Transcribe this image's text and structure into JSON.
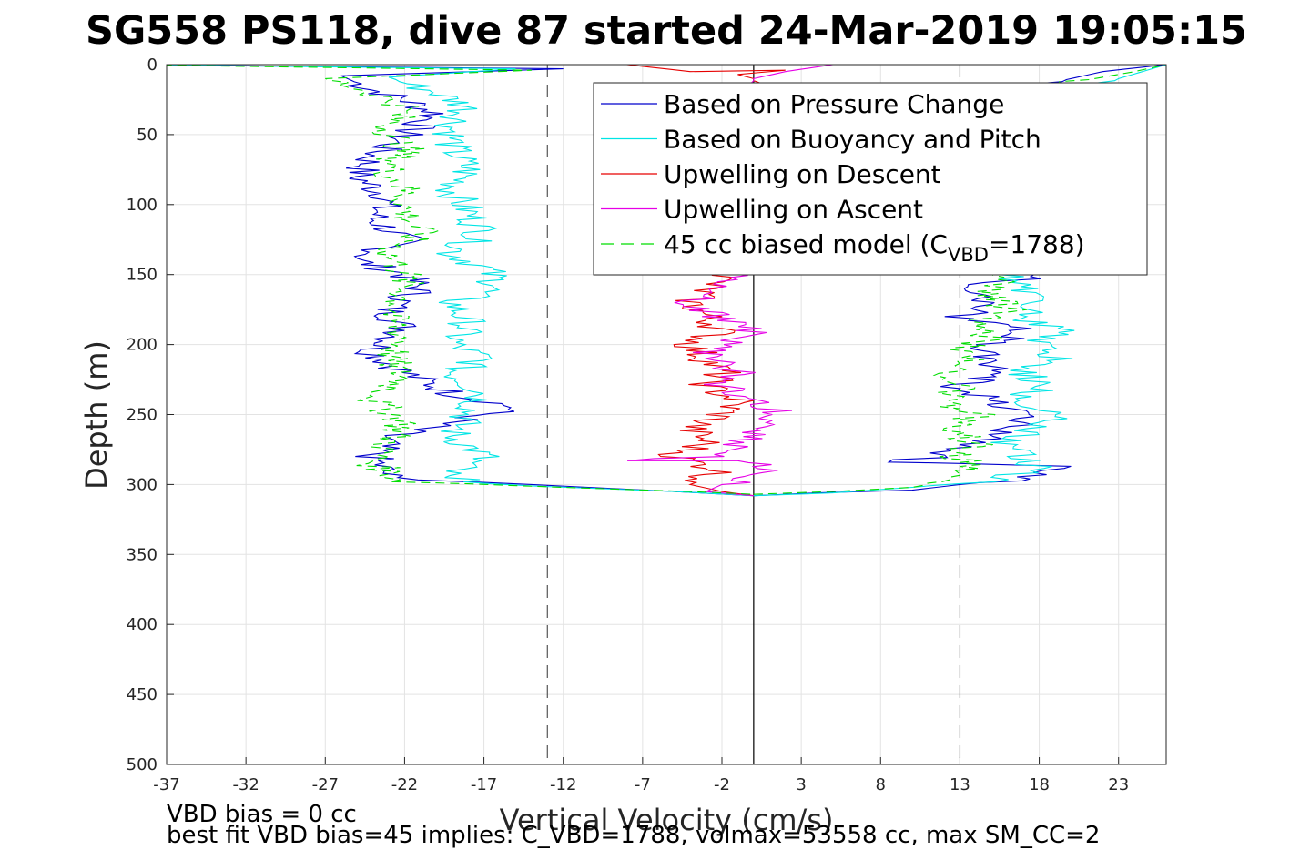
{
  "chart_data": {
    "type": "line",
    "title": "SG558 PS118, dive 87 started 24-Mar-2019 19:05:15",
    "xlabel": "Vertical Velocity (cm/s)",
    "ylabel": "Depth (m)",
    "xlim": [
      -37,
      26
    ],
    "ylim": [
      0,
      500
    ],
    "y_reversed": true,
    "grid": true,
    "xticks": [
      -37,
      -32,
      -27,
      -22,
      -17,
      -12,
      -7,
      -2,
      3,
      8,
      13,
      18,
      23
    ],
    "yticks": [
      0,
      50,
      100,
      150,
      200,
      250,
      300,
      350,
      400,
      450,
      500
    ],
    "reference_lines": [
      {
        "x": 0,
        "style": "solid",
        "color": "#000000"
      },
      {
        "x": -13,
        "style": "dashed",
        "color": "#555555"
      },
      {
        "x": 13,
        "style": "dashed",
        "color": "#555555"
      }
    ],
    "legend_position": "top-right",
    "series": [
      {
        "name": "Based on Pressure Change",
        "color": "#0000cc",
        "style": "solid",
        "descent": [
          [
            -40,
            0
          ],
          [
            -12,
            3
          ],
          [
            -26,
            8
          ],
          [
            -24,
            18
          ],
          [
            -22,
            25
          ],
          [
            -20,
            35
          ],
          [
            -22,
            50
          ],
          [
            -24,
            65
          ],
          [
            -25,
            80
          ],
          [
            -23,
            95
          ],
          [
            -24,
            110
          ],
          [
            -22,
            125
          ],
          [
            -25,
            140
          ],
          [
            -22,
            150
          ],
          [
            -21,
            160
          ],
          [
            -23,
            175
          ],
          [
            -22,
            190
          ],
          [
            -24,
            205
          ],
          [
            -22,
            220
          ],
          [
            -19,
            235
          ],
          [
            -15,
            245
          ],
          [
            -19,
            255
          ],
          [
            -23,
            265
          ],
          [
            -24,
            280
          ],
          [
            -23,
            295
          ],
          [
            -14,
            300
          ],
          [
            -5,
            305
          ],
          [
            0,
            308
          ]
        ],
        "ascent": [
          [
            0,
            308
          ],
          [
            4,
            306
          ],
          [
            10,
            304
          ],
          [
            13,
            300
          ],
          [
            17,
            296
          ],
          [
            20,
            287
          ],
          [
            13,
            285
          ],
          [
            9,
            284
          ],
          [
            12,
            279
          ],
          [
            14,
            270
          ],
          [
            16,
            260
          ],
          [
            18,
            250
          ],
          [
            15,
            240
          ],
          [
            13,
            230
          ],
          [
            16,
            220
          ],
          [
            14,
            210
          ],
          [
            15,
            200
          ],
          [
            17,
            190
          ],
          [
            13,
            180
          ],
          [
            15,
            170
          ],
          [
            13,
            160
          ],
          [
            17,
            153
          ],
          [
            16,
            145
          ],
          [
            15,
            120
          ],
          [
            14,
            80
          ],
          [
            15,
            40
          ],
          [
            18,
            15
          ],
          [
            22,
            5
          ],
          [
            26,
            0
          ]
        ]
      },
      {
        "name": "Based on Buoyancy and Pitch",
        "color": "#00e5e5",
        "style": "solid",
        "descent": [
          [
            -40,
            0
          ],
          [
            -15,
            3
          ],
          [
            -23,
            9
          ],
          [
            -20,
            20
          ],
          [
            -18,
            30
          ],
          [
            -19,
            45
          ],
          [
            -19,
            60
          ],
          [
            -18,
            75
          ],
          [
            -19,
            90
          ],
          [
            -18,
            105
          ],
          [
            -17,
            120
          ],
          [
            -19,
            135
          ],
          [
            -17,
            145
          ],
          [
            -16,
            158
          ],
          [
            -19,
            170
          ],
          [
            -18,
            185
          ],
          [
            -19,
            200
          ],
          [
            -17,
            210
          ],
          [
            -19,
            220
          ],
          [
            -17,
            235
          ],
          [
            -18,
            250
          ],
          [
            -19,
            265
          ],
          [
            -17,
            280
          ],
          [
            -20,
            295
          ],
          [
            -14,
            301
          ],
          [
            -5,
            305
          ],
          [
            0,
            308
          ]
        ],
        "ascent": [
          [
            0,
            308
          ],
          [
            5,
            306
          ],
          [
            10,
            302
          ],
          [
            14,
            298
          ],
          [
            18,
            290
          ],
          [
            17,
            280
          ],
          [
            16,
            270
          ],
          [
            18,
            260
          ],
          [
            19,
            250
          ],
          [
            17,
            240
          ],
          [
            18,
            230
          ],
          [
            17,
            220
          ],
          [
            19,
            210
          ],
          [
            18,
            200
          ],
          [
            19,
            190
          ],
          [
            17,
            180
          ],
          [
            18,
            170
          ],
          [
            17,
            160
          ],
          [
            16,
            150
          ],
          [
            17,
            120
          ],
          [
            16,
            80
          ],
          [
            18,
            40
          ],
          [
            23,
            10
          ],
          [
            26,
            0
          ]
        ]
      },
      {
        "name": "Upwelling on Descent",
        "color": "#e60000",
        "style": "solid",
        "descent": [
          [
            -8,
            0
          ],
          [
            -4,
            5
          ],
          [
            2,
            4
          ],
          [
            -1,
            7
          ],
          [
            0,
            10
          ],
          [
            0,
            140
          ],
          [
            -2,
            152
          ],
          [
            -3,
            160
          ],
          [
            -4,
            170
          ],
          [
            -3,
            180
          ],
          [
            -2,
            190
          ],
          [
            -4,
            200
          ],
          [
            -3,
            210
          ],
          [
            -2,
            220
          ],
          [
            -3,
            230
          ],
          [
            -1,
            240
          ],
          [
            -2,
            250
          ],
          [
            -4,
            260
          ],
          [
            -3,
            270
          ],
          [
            -5,
            280
          ],
          [
            -2,
            290
          ],
          [
            -4,
            300
          ],
          [
            -2,
            305
          ],
          [
            0,
            308
          ]
        ]
      },
      {
        "name": "Upwelling on Ascent",
        "color": "#e600e6",
        "style": "solid",
        "descent": [
          [
            0,
            308
          ],
          [
            -3,
            305
          ],
          [
            -2,
            300
          ],
          [
            2,
            290
          ],
          [
            -1,
            283
          ],
          [
            -8,
            283
          ],
          [
            -3,
            280
          ],
          [
            -1,
            270
          ],
          [
            0,
            260
          ],
          [
            2,
            250
          ],
          [
            0,
            240
          ],
          [
            -2,
            230
          ],
          [
            -1,
            220
          ],
          [
            -3,
            210
          ],
          [
            -2,
            200
          ],
          [
            0,
            190
          ],
          [
            -2,
            180
          ],
          [
            -4,
            170
          ],
          [
            -3,
            160
          ],
          [
            -2,
            152
          ],
          [
            0,
            145
          ],
          [
            0,
            10
          ],
          [
            2,
            5
          ],
          [
            5,
            0
          ]
        ]
      },
      {
        "name": "45 cc biased model (C_VBD=1788)",
        "legend_prefix": "45 cc biased model (C",
        "legend_sub": "VBD",
        "legend_suffix": "=1788)",
        "color": "#00dd00",
        "style": "dashed",
        "descent": [
          [
            -40,
            0
          ],
          [
            -14,
            4
          ],
          [
            -27,
            10
          ],
          [
            -24,
            20
          ],
          [
            -22,
            30
          ],
          [
            -23,
            45
          ],
          [
            -22,
            60
          ],
          [
            -23,
            75
          ],
          [
            -22,
            90
          ],
          [
            -22,
            105
          ],
          [
            -21,
            120
          ],
          [
            -23,
            135
          ],
          [
            -22,
            150
          ],
          [
            -22,
            165
          ],
          [
            -23,
            180
          ],
          [
            -22,
            195
          ],
          [
            -23,
            210
          ],
          [
            -22,
            225
          ],
          [
            -24,
            240
          ],
          [
            -22,
            255
          ],
          [
            -23,
            270
          ],
          [
            -24,
            285
          ],
          [
            -22,
            298
          ],
          [
            -12,
            302
          ],
          [
            -4,
            305
          ],
          [
            0,
            307
          ]
        ],
        "ascent": [
          [
            0,
            307
          ],
          [
            5,
            305
          ],
          [
            10,
            302
          ],
          [
            12,
            298
          ],
          [
            14,
            290
          ],
          [
            13,
            280
          ],
          [
            14,
            270
          ],
          [
            12,
            260
          ],
          [
            14,
            250
          ],
          [
            12,
            240
          ],
          [
            13,
            230
          ],
          [
            11,
            222
          ],
          [
            14,
            215
          ],
          [
            13,
            205
          ],
          [
            15,
            195
          ],
          [
            14,
            185
          ],
          [
            16,
            175
          ],
          [
            15,
            165
          ],
          [
            16,
            155
          ],
          [
            15,
            120
          ],
          [
            15,
            80
          ],
          [
            16,
            40
          ],
          [
            19,
            15
          ],
          [
            24,
            5
          ],
          [
            26,
            0
          ]
        ]
      }
    ]
  },
  "footer": {
    "line1": "VBD bias = 0 cc",
    "line2": "best fit VBD bias=45 implies: C_VBD=1788, volmax=53558 cc, max SM_CC=2"
  }
}
